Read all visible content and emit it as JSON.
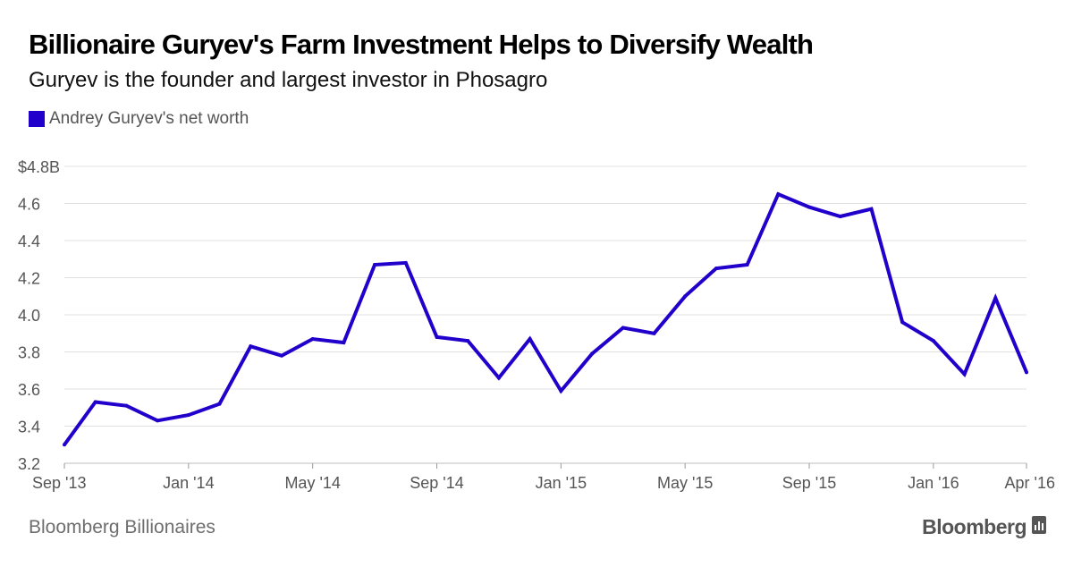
{
  "header": {
    "title": "Billionaire Guryev's Farm Investment Helps to Diversify Wealth",
    "subtitle": "Guryev is the founder and largest investor in Phosagro"
  },
  "legend": {
    "label": "Andrey Guryev's net worth"
  },
  "footer": {
    "source": "Bloomberg Billionaires",
    "brand": "Bloomberg",
    "brand_icon": "bloomberg-terminal-icon"
  },
  "colors": {
    "series": "#2200cc",
    "grid": "#e0e0e0",
    "axis_text": "#555555"
  },
  "chart_data": {
    "type": "line",
    "title": "Billionaire Guryev's Farm Investment Helps to Diversify Wealth",
    "subtitle": "Guryev is the founder and largest investor in Phosagro",
    "xlabel": "",
    "ylabel": "",
    "ylim": [
      3.2,
      4.8
    ],
    "yticks": [
      "$4.8B",
      "4.6",
      "4.4",
      "4.2",
      "4.0",
      "3.8",
      "3.6",
      "3.4",
      "3.2"
    ],
    "ytick_values": [
      4.8,
      4.6,
      4.4,
      4.2,
      4.0,
      3.8,
      3.6,
      3.4,
      3.2
    ],
    "xlim": [
      "2013-09",
      "2016-04"
    ],
    "xticks": [
      "Sep '13",
      "Jan '14",
      "May '14",
      "Sep '14",
      "Jan '15",
      "May '15",
      "Sep '15",
      "Jan '16",
      "Apr '16"
    ],
    "xtick_dates": [
      "2013-09",
      "2014-01",
      "2014-05",
      "2014-09",
      "2015-01",
      "2015-05",
      "2015-09",
      "2016-01",
      "2016-04"
    ],
    "grid": true,
    "legend_position": "top-left",
    "series": [
      {
        "name": "Andrey Guryev's net worth",
        "color": "#2200cc",
        "x": [
          "2013-09",
          "2013-10",
          "2013-11",
          "2013-12",
          "2014-01",
          "2014-02",
          "2014-03",
          "2014-04",
          "2014-05",
          "2014-06",
          "2014-07",
          "2014-08",
          "2014-09",
          "2014-10",
          "2014-11",
          "2014-12",
          "2015-01",
          "2015-02",
          "2015-03",
          "2015-04",
          "2015-05",
          "2015-06",
          "2015-07",
          "2015-08",
          "2015-09",
          "2015-10",
          "2015-11",
          "2015-12",
          "2016-01",
          "2016-02",
          "2016-03",
          "2016-04"
        ],
        "values": [
          3.3,
          3.53,
          3.51,
          3.43,
          3.46,
          3.52,
          3.83,
          3.78,
          3.87,
          3.85,
          4.27,
          4.28,
          3.88,
          3.86,
          3.66,
          3.87,
          3.59,
          3.79,
          3.93,
          3.9,
          4.1,
          4.25,
          4.27,
          4.65,
          4.58,
          4.53,
          4.57,
          3.96,
          3.86,
          3.68,
          4.09,
          3.69
        ]
      }
    ]
  }
}
